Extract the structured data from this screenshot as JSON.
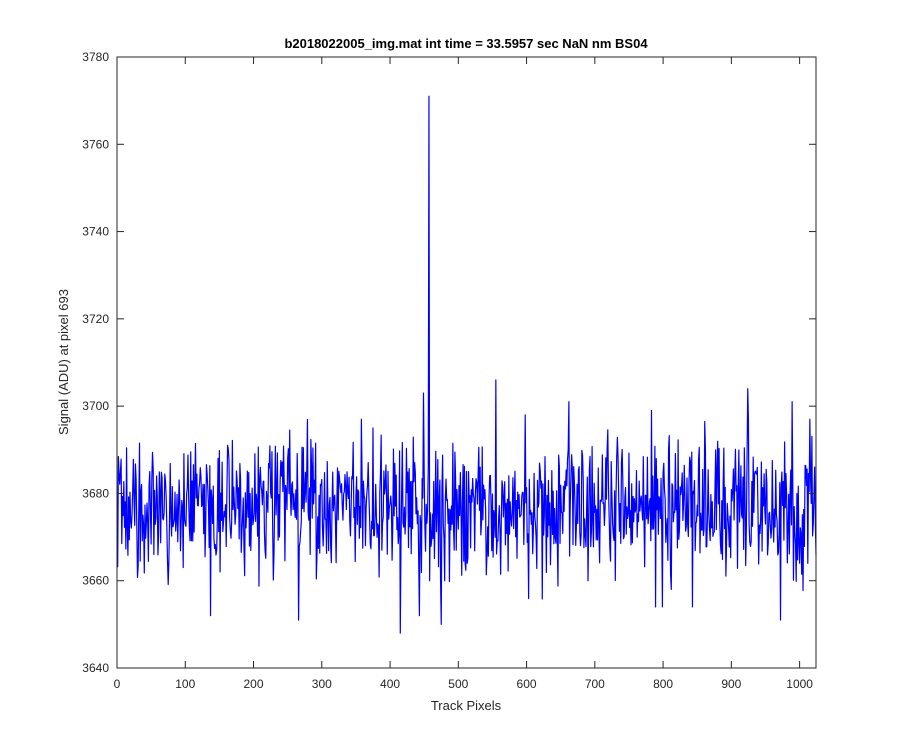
{
  "chart_data": {
    "type": "line",
    "title": "b2018022005_img.mat int time = 33.5957 sec  NaN nm BS04",
    "xlabel": "Track Pixels",
    "ylabel": "Signal (ADU) at pixel 693",
    "xlim": [
      0,
      1024
    ],
    "ylim": [
      3640,
      3780
    ],
    "xticks": [
      0,
      100,
      200,
      300,
      400,
      500,
      600,
      700,
      800,
      900,
      1000
    ],
    "yticks": [
      3640,
      3660,
      3680,
      3700,
      3720,
      3740,
      3760,
      3780
    ],
    "grid": false,
    "legend": "none",
    "line_color": "#0000ff",
    "noise": {
      "baseline": 3677,
      "min": 3648,
      "max": 3704,
      "seed": 20180220
    },
    "spikes": [
      {
        "x": 137,
        "y": 3652
      },
      {
        "x": 266,
        "y": 3651
      },
      {
        "x": 358,
        "y": 3697
      },
      {
        "x": 375,
        "y": 3695
      },
      {
        "x": 415,
        "y": 3648
      },
      {
        "x": 443,
        "y": 3652
      },
      {
        "x": 449,
        "y": 3703
      },
      {
        "x": 457,
        "y": 3771
      },
      {
        "x": 458,
        "y": 3660
      },
      {
        "x": 475,
        "y": 3650
      },
      {
        "x": 555,
        "y": 3706
      },
      {
        "x": 598,
        "y": 3698
      },
      {
        "x": 662,
        "y": 3701
      },
      {
        "x": 690,
        "y": 3660
      },
      {
        "x": 783,
        "y": 3699
      },
      {
        "x": 789,
        "y": 3654
      },
      {
        "x": 799,
        "y": 3654
      },
      {
        "x": 812,
        "y": 3658
      },
      {
        "x": 843,
        "y": 3654
      },
      {
        "x": 924,
        "y": 3704
      },
      {
        "x": 972,
        "y": 3651
      },
      {
        "x": 989,
        "y": 3701
      },
      {
        "x": 1000,
        "y": 3664
      },
      {
        "x": 1015,
        "y": 3697
      }
    ]
  }
}
